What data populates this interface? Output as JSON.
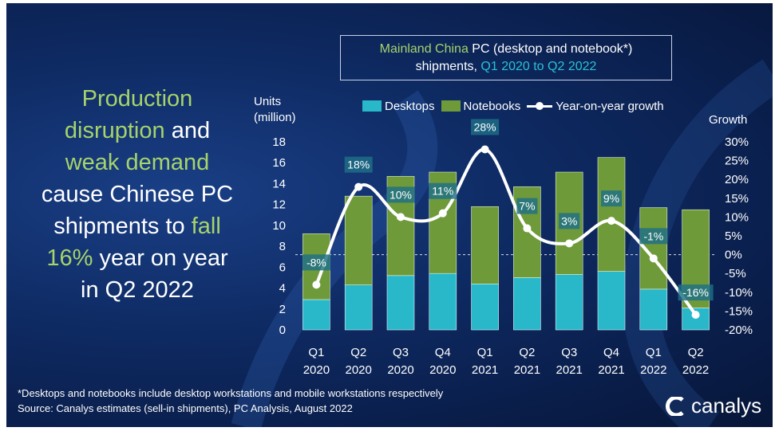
{
  "headline": {
    "p1": "Production",
    "p2": "disruption",
    "p3": " and",
    "p4": "weak demand",
    "p5": "cause Chinese PC",
    "p6": "shipments to ",
    "p7": "fall",
    "p8": "16%",
    "p9": " year on year",
    "p10": "in Q2 2022"
  },
  "title_box": {
    "part1": "Mainland China",
    "part2": " PC (desktop and notebook*)",
    "part3": "shipments, ",
    "part4": "Q1 2020 to Q2 2022"
  },
  "legend": {
    "desktops": "Desktops",
    "notebooks": "Notebooks",
    "growth": "Year-on-year growth"
  },
  "axis": {
    "left_title_1": "Units",
    "left_title_2": "(million)",
    "right_title": "Growth"
  },
  "footnote": {
    "line1": "*Desktops and notebooks include desktop workstations and mobile workstations respectively",
    "line2": "Source: Canalys estimates (sell-in shipments), PC Analysis, August 2022"
  },
  "brand": {
    "name": "canalys"
  },
  "colors": {
    "desktop": "#29b7ca",
    "notebook": "#6e9a3a",
    "accent_green": "#a6d36b",
    "accent_cyan": "#29c2d6",
    "line": "#ffffff",
    "label_bg": "#1f6f86"
  },
  "chart_data": {
    "type": "bar",
    "stacked": true,
    "categories": [
      [
        "Q1",
        "2020"
      ],
      [
        "Q2",
        "2020"
      ],
      [
        "Q3",
        "2020"
      ],
      [
        "Q4",
        "2020"
      ],
      [
        "Q1",
        "2021"
      ],
      [
        "Q2",
        "2021"
      ],
      [
        "Q3",
        "2021"
      ],
      [
        "Q4",
        "2021"
      ],
      [
        "Q1",
        "2022"
      ],
      [
        "Q2",
        "2022"
      ]
    ],
    "series": [
      {
        "name": "Desktops",
        "values": [
          2.9,
          4.3,
          5.2,
          5.4,
          4.4,
          5.0,
          5.3,
          5.6,
          3.9,
          2.1
        ]
      },
      {
        "name": "Notebooks",
        "values": [
          6.3,
          8.5,
          9.5,
          9.7,
          7.4,
          8.7,
          9.8,
          10.9,
          7.8,
          9.4
        ]
      }
    ],
    "growth": {
      "name": "Year-on-year growth",
      "values": [
        -8,
        18,
        10,
        11,
        28,
        7,
        3,
        9,
        -1,
        -16
      ],
      "labels": [
        "-8%",
        "18%",
        "10%",
        "11%",
        "28%",
        "7%",
        "3%",
        "9%",
        "-1%",
        "-16%"
      ]
    },
    "y_left": {
      "min": 0,
      "max": 18,
      "step": 2,
      "ticks": [
        "0",
        "2",
        "4",
        "6",
        "8",
        "10",
        "12",
        "14",
        "16",
        "18"
      ]
    },
    "y_right": {
      "min": -20,
      "max": 30,
      "step": 5,
      "ticks": [
        "-20%",
        "-15%",
        "-10%",
        "-5%",
        "0%",
        "5%",
        "10%",
        "15%",
        "20%",
        "25%",
        "30%"
      ]
    },
    "zero_line": true,
    "legend_position": "top"
  }
}
